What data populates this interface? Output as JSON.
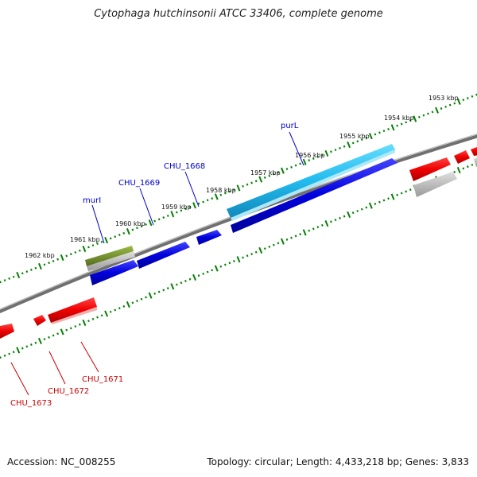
{
  "title": "Cytophaga hutchinsonii ATCC 33406, complete genome",
  "footer": {
    "accession": "Accession: NC_008255",
    "summary": "Topology: circular; Length: 4,433,218 bp; Genes: 3,833"
  },
  "ruler_labels": [
    "1953 kbp",
    "1954 kbp",
    "1955 kbp",
    "1956 kbp",
    "1957 kbp",
    "1958 kbp",
    "1959 kbp",
    "1960 kbp",
    "1961 kbp",
    "1962 kbp"
  ],
  "gene_labels_top": [
    "purL",
    "CHU_1668",
    "CHU_1669",
    "murI"
  ],
  "gene_labels_bottom": [
    "CHU_1671",
    "CHU_1672",
    "CHU_1673"
  ],
  "colors": {
    "forward_cds": "#0000dd",
    "highlight_cds": "#22bbee",
    "reverse_cds": "#ee0000",
    "rna": "#6b8e23",
    "other": "#b0b0b0",
    "backbone": "#808080",
    "ticks": "#008000",
    "label_top": "#0000cc",
    "label_bottom": "#cc0000"
  }
}
